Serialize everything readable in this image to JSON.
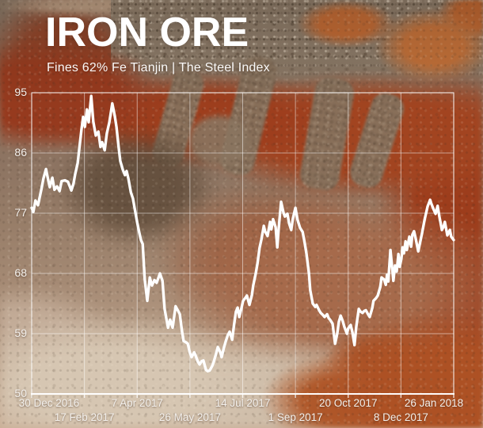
{
  "header": {
    "title": "IRON ORE",
    "subtitle": "Fines 62% Fe Tianjin | The Steel Index"
  },
  "colors": {
    "line": "#ffffff",
    "grid_line": "#ffffff",
    "label_text": "#f3f0ec",
    "red_mud": "#9e3e1d",
    "orange_ore": "#bf6a33",
    "gravel": "#8a7a67",
    "light_mud": "#d6c6b2"
  },
  "chart_data": {
    "type": "line",
    "title": "IRON ORE",
    "subtitle": "Fines 62% Fe Tianjin | The Steel Index",
    "xlabel": "",
    "ylabel": "",
    "ylim": [
      50,
      95
    ],
    "yticks": [
      95,
      86,
      77,
      68,
      59,
      50
    ],
    "xticks": [
      "30 Dec 2016",
      "17 Feb 2017",
      "7 Apr 2017",
      "26 May 2017",
      "14 Jul 2017",
      "1 Sep 2017",
      "20 Oct 2017",
      "8 Dec 2017",
      "26 Jan 2018"
    ],
    "grid": true,
    "legend_position": "none",
    "series": [
      {
        "name": "Fines 62% Fe Tianjin",
        "color": "#ffffff",
        "points": [
          [
            0.0,
            77.8
          ],
          [
            0.004,
            77.2
          ],
          [
            0.009,
            78.9
          ],
          [
            0.015,
            78.2
          ],
          [
            0.023,
            80.6
          ],
          [
            0.028,
            82.2
          ],
          [
            0.034,
            83.6
          ],
          [
            0.039,
            82.0
          ],
          [
            0.043,
            80.9
          ],
          [
            0.049,
            82.3
          ],
          [
            0.054,
            80.5
          ],
          [
            0.06,
            81.0
          ],
          [
            0.066,
            80.3
          ],
          [
            0.071,
            81.8
          ],
          [
            0.079,
            81.9
          ],
          [
            0.086,
            81.7
          ],
          [
            0.094,
            80.4
          ],
          [
            0.099,
            81.4
          ],
          [
            0.103,
            82.8
          ],
          [
            0.109,
            84.5
          ],
          [
            0.113,
            86.7
          ],
          [
            0.118,
            89.5
          ],
          [
            0.122,
            91.4
          ],
          [
            0.126,
            89.9
          ],
          [
            0.131,
            92.5
          ],
          [
            0.135,
            90.6
          ],
          [
            0.141,
            94.5
          ],
          [
            0.146,
            90.7
          ],
          [
            0.152,
            88.6
          ],
          [
            0.158,
            89.2
          ],
          [
            0.163,
            86.9
          ],
          [
            0.167,
            87.6
          ],
          [
            0.173,
            86.4
          ],
          [
            0.178,
            88.9
          ],
          [
            0.184,
            90.6
          ],
          [
            0.191,
            93.4
          ],
          [
            0.197,
            91.5
          ],
          [
            0.201,
            89.9
          ],
          [
            0.206,
            86.9
          ],
          [
            0.21,
            84.8
          ],
          [
            0.216,
            83.5
          ],
          [
            0.221,
            82.7
          ],
          [
            0.225,
            83.3
          ],
          [
            0.229,
            82.2
          ],
          [
            0.235,
            80.1
          ],
          [
            0.24,
            79.2
          ],
          [
            0.244,
            77.7
          ],
          [
            0.25,
            75.6
          ],
          [
            0.255,
            74.1
          ],
          [
            0.259,
            73.0
          ],
          [
            0.263,
            72.4
          ],
          [
            0.268,
            67.1
          ],
          [
            0.274,
            63.9
          ],
          [
            0.28,
            67.4
          ],
          [
            0.285,
            66.2
          ],
          [
            0.291,
            67.0
          ],
          [
            0.296,
            66.6
          ],
          [
            0.3,
            67.3
          ],
          [
            0.304,
            68.0
          ],
          [
            0.31,
            66.9
          ],
          [
            0.315,
            62.7
          ],
          [
            0.323,
            59.9
          ],
          [
            0.328,
            61.1
          ],
          [
            0.334,
            59.9
          ],
          [
            0.341,
            63.1
          ],
          [
            0.347,
            62.4
          ],
          [
            0.351,
            61.9
          ],
          [
            0.356,
            59.5
          ],
          [
            0.36,
            57.9
          ],
          [
            0.366,
            57.7
          ],
          [
            0.37,
            57.5
          ],
          [
            0.375,
            56.1
          ],
          [
            0.379,
            55.5
          ],
          [
            0.385,
            56.2
          ],
          [
            0.388,
            55.8
          ],
          [
            0.394,
            54.8
          ],
          [
            0.398,
            54.4
          ],
          [
            0.403,
            54.9
          ],
          [
            0.407,
            55.0
          ],
          [
            0.413,
            53.6
          ],
          [
            0.417,
            53.4
          ],
          [
            0.422,
            53.5
          ],
          [
            0.428,
            54.2
          ],
          [
            0.431,
            54.7
          ],
          [
            0.437,
            56.0
          ],
          [
            0.441,
            57.0
          ],
          [
            0.447,
            56.2
          ],
          [
            0.45,
            55.5
          ],
          [
            0.456,
            57.0
          ],
          [
            0.46,
            57.9
          ],
          [
            0.465,
            58.8
          ],
          [
            0.469,
            59.3
          ],
          [
            0.475,
            58.1
          ],
          [
            0.48,
            60.5
          ],
          [
            0.484,
            62.3
          ],
          [
            0.488,
            62.9
          ],
          [
            0.492,
            61.5
          ],
          [
            0.497,
            62.8
          ],
          [
            0.501,
            63.9
          ],
          [
            0.507,
            64.4
          ],
          [
            0.51,
            64.7
          ],
          [
            0.516,
            63.3
          ],
          [
            0.522,
            64.8
          ],
          [
            0.525,
            66.2
          ],
          [
            0.531,
            68.0
          ],
          [
            0.535,
            69.5
          ],
          [
            0.54,
            71.8
          ],
          [
            0.544,
            73.0
          ],
          [
            0.55,
            75.1
          ],
          [
            0.553,
            74.3
          ],
          [
            0.559,
            73.6
          ],
          [
            0.565,
            75.7
          ],
          [
            0.568,
            74.6
          ],
          [
            0.572,
            76.1
          ],
          [
            0.578,
            74.9
          ],
          [
            0.582,
            71.9
          ],
          [
            0.585,
            74.5
          ],
          [
            0.591,
            78.7
          ],
          [
            0.597,
            77.0
          ],
          [
            0.6,
            76.5
          ],
          [
            0.606,
            76.9
          ],
          [
            0.61,
            75.5
          ],
          [
            0.615,
            74.5
          ],
          [
            0.619,
            76.2
          ],
          [
            0.625,
            77.8
          ],
          [
            0.63,
            76.0
          ],
          [
            0.636,
            74.8
          ],
          [
            0.642,
            74.2
          ],
          [
            0.647,
            72.5
          ],
          [
            0.651,
            71.0
          ],
          [
            0.657,
            68.0
          ],
          [
            0.66,
            65.5
          ],
          [
            0.666,
            63.5
          ],
          [
            0.672,
            63.0
          ],
          [
            0.675,
            63.3
          ],
          [
            0.681,
            62.5
          ],
          [
            0.685,
            62.1
          ],
          [
            0.69,
            61.8
          ],
          [
            0.694,
            61.5
          ],
          [
            0.7,
            61.9
          ],
          [
            0.704,
            61.3
          ],
          [
            0.707,
            61.1
          ],
          [
            0.713,
            60.5
          ],
          [
            0.719,
            57.5
          ],
          [
            0.724,
            59.0
          ],
          [
            0.728,
            60.8
          ],
          [
            0.732,
            61.7
          ],
          [
            0.737,
            60.9
          ],
          [
            0.741,
            60.0
          ],
          [
            0.747,
            59.0
          ],
          [
            0.75,
            59.8
          ],
          [
            0.756,
            60.3
          ],
          [
            0.76,
            59.2
          ],
          [
            0.765,
            57.3
          ],
          [
            0.769,
            60.0
          ],
          [
            0.775,
            62.7
          ],
          [
            0.779,
            62.3
          ],
          [
            0.784,
            62.1
          ],
          [
            0.788,
            62.4
          ],
          [
            0.792,
            62.5
          ],
          [
            0.797,
            61.9
          ],
          [
            0.801,
            61.5
          ],
          [
            0.807,
            62.8
          ],
          [
            0.81,
            63.9
          ],
          [
            0.816,
            64.3
          ],
          [
            0.82,
            64.7
          ],
          [
            0.826,
            66.0
          ],
          [
            0.829,
            67.4
          ],
          [
            0.835,
            67.1
          ],
          [
            0.839,
            66.3
          ],
          [
            0.842,
            67.8
          ],
          [
            0.845,
            66.8
          ],
          [
            0.85,
            71.5
          ],
          [
            0.854,
            68.9
          ],
          [
            0.857,
            66.9
          ],
          [
            0.861,
            69.2
          ],
          [
            0.865,
            68.3
          ],
          [
            0.869,
            70.9
          ],
          [
            0.872,
            69.0
          ],
          [
            0.876,
            70.2
          ],
          [
            0.879,
            71.9
          ],
          [
            0.882,
            71.0
          ],
          [
            0.886,
            72.8
          ],
          [
            0.889,
            71.5
          ],
          [
            0.895,
            73.5
          ],
          [
            0.899,
            72.0
          ],
          [
            0.902,
            73.8
          ],
          [
            0.906,
            74.3
          ],
          [
            0.91,
            73.2
          ],
          [
            0.916,
            71.3
          ],
          [
            0.919,
            72.2
          ],
          [
            0.925,
            74.0
          ],
          [
            0.931,
            76.0
          ],
          [
            0.938,
            78.0
          ],
          [
            0.944,
            79.0
          ],
          [
            0.947,
            78.4
          ],
          [
            0.953,
            77.5
          ],
          [
            0.957,
            76.9
          ],
          [
            0.962,
            78.1
          ],
          [
            0.966,
            76.5
          ],
          [
            0.972,
            74.5
          ],
          [
            0.976,
            75.0
          ],
          [
            0.979,
            75.7
          ],
          [
            0.985,
            73.7
          ],
          [
            0.991,
            74.5
          ],
          [
            0.994,
            73.5
          ],
          [
            1.0,
            73.0
          ]
        ]
      }
    ]
  }
}
